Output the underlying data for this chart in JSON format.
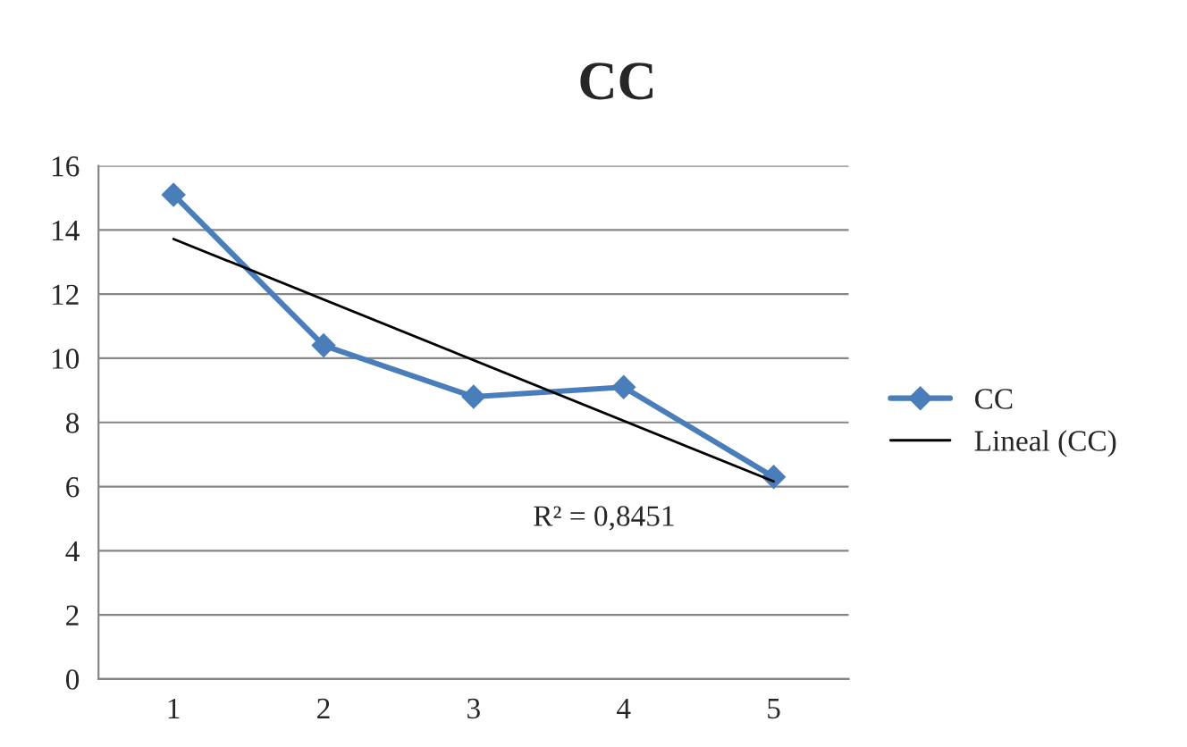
{
  "chart_data": {
    "type": "line",
    "title": "CC",
    "xlim": [
      0.5,
      5.5
    ],
    "xticks": [
      1,
      2,
      3,
      4,
      5
    ],
    "ylim": [
      0,
      16
    ],
    "yticks": [
      0,
      2,
      4,
      6,
      8,
      10,
      12,
      14,
      16
    ],
    "grid": "y",
    "legend": "right",
    "series": [
      {
        "name": "CC",
        "color": "#4a7ebb",
        "x": [
          1,
          2,
          3,
          4,
          5
        ],
        "values": [
          15.1,
          10.4,
          8.8,
          9.1,
          6.3
        ],
        "marker": "diamond",
        "line_style": "solid"
      },
      {
        "name": "Lineal (CC)",
        "color": "#000000",
        "x": [
          1,
          5
        ],
        "values": [
          13.72,
          6.16
        ],
        "marker": "none",
        "line_style": "solid"
      }
    ],
    "annotations": [
      "R² = 0,8451"
    ]
  }
}
